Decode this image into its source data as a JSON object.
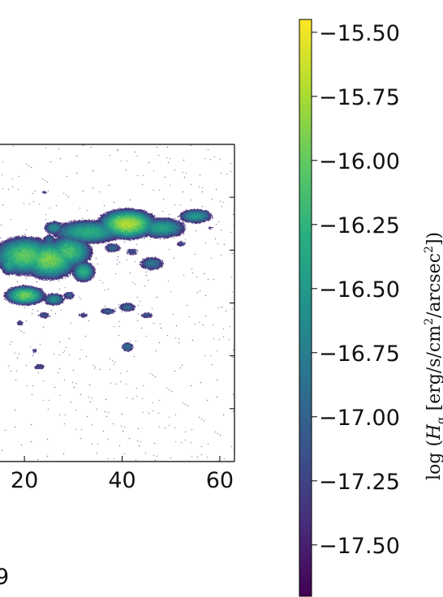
{
  "chart_data": {
    "type": "heatmap",
    "title": "",
    "x_axis": {
      "ticks": [
        20,
        40,
        60
      ],
      "tick_labels": [
        "20",
        "40",
        "60"
      ],
      "range": [
        15,
        63
      ]
    },
    "colorbar": {
      "colormap": "viridis",
      "range": [
        -17.7,
        -15.45
      ],
      "ticks": [
        -15.5,
        -15.75,
        -16.0,
        -16.25,
        -16.5,
        -16.75,
        -17.0,
        -17.25,
        -17.5
      ],
      "tick_labels": [
        "−15.50",
        "−15.75",
        "−16.00",
        "−16.25",
        "−16.50",
        "−16.75",
        "−17.00",
        "−17.25",
        "−17.50"
      ],
      "label": "log (H_α [erg/s/cm²/arcsec²])"
    },
    "background_color": "#ffffff",
    "partial_left_label": "9",
    "clumps": [
      {
        "x": 41,
        "y": 20,
        "sx": 3.5,
        "sy": 2.2,
        "peak": -15.7
      },
      {
        "x": 33,
        "y": 22,
        "sx": 5.0,
        "sy": 2.0,
        "peak": -16.3
      },
      {
        "x": 48,
        "y": 21,
        "sx": 3.5,
        "sy": 1.8,
        "peak": -16.4
      },
      {
        "x": 55,
        "y": 18,
        "sx": 2.5,
        "sy": 1.3,
        "peak": -16.5
      },
      {
        "x": 26,
        "y": 21,
        "sx": 1.5,
        "sy": 1.3,
        "peak": -16.6
      },
      {
        "x": 25,
        "y": 24,
        "sx": 1.1,
        "sy": 1.2,
        "peak": -16.9
      },
      {
        "x": 20,
        "y": 28,
        "sx": 4.0,
        "sy": 3.0,
        "peak": -16.0
      },
      {
        "x": 25,
        "y": 29,
        "sx": 3.5,
        "sy": 3.0,
        "peak": -15.9
      },
      {
        "x": 29,
        "y": 27,
        "sx": 3.0,
        "sy": 2.6,
        "peak": -16.1
      },
      {
        "x": 32,
        "y": 32,
        "sx": 1.6,
        "sy": 1.8,
        "peak": -16.3
      },
      {
        "x": 38,
        "y": 26,
        "sx": 1.5,
        "sy": 1.0,
        "peak": -16.9
      },
      {
        "x": 42,
        "y": 27,
        "sx": 1.2,
        "sy": 0.9,
        "peak": -17.1
      },
      {
        "x": 46,
        "y": 30,
        "sx": 2.0,
        "sy": 1.4,
        "peak": -16.8
      },
      {
        "x": 20,
        "y": 38,
        "sx": 2.5,
        "sy": 1.5,
        "peak": -15.95
      },
      {
        "x": 26,
        "y": 39,
        "sx": 1.6,
        "sy": 1.2,
        "peak": -16.6
      },
      {
        "x": 29,
        "y": 38,
        "sx": 1.1,
        "sy": 0.9,
        "peak": -17.0
      },
      {
        "x": 24,
        "y": 43,
        "sx": 1.2,
        "sy": 0.8,
        "peak": -17.1
      },
      {
        "x": 32,
        "y": 43,
        "sx": 1.0,
        "sy": 0.7,
        "peak": -17.2
      },
      {
        "x": 37,
        "y": 42,
        "sx": 1.5,
        "sy": 0.8,
        "peak": -17.0
      },
      {
        "x": 41,
        "y": 41,
        "sx": 1.5,
        "sy": 1.0,
        "peak": -16.9
      },
      {
        "x": 45,
        "y": 43,
        "sx": 1.3,
        "sy": 0.8,
        "peak": -17.1
      },
      {
        "x": 41,
        "y": 51,
        "sx": 1.0,
        "sy": 1.0,
        "peak": -16.8
      },
      {
        "x": 19,
        "y": 45,
        "sx": 0.8,
        "sy": 0.8,
        "peak": -17.2
      },
      {
        "x": 23,
        "y": 56,
        "sx": 1.3,
        "sy": 0.8,
        "peak": -17.2
      },
      {
        "x": 22,
        "y": 52,
        "sx": 0.6,
        "sy": 0.8,
        "peak": -17.3
      },
      {
        "x": 17,
        "y": 30,
        "sx": 1.5,
        "sy": 2.0,
        "peak": -16.4
      },
      {
        "x": 24,
        "y": 12,
        "sx": 0.6,
        "sy": 0.5,
        "peak": -17.3
      },
      {
        "x": 52,
        "y": 25,
        "sx": 1.0,
        "sy": 0.8,
        "peak": -17.2
      },
      {
        "x": 58,
        "y": 21,
        "sx": 0.7,
        "sy": 0.7,
        "peak": -17.4
      }
    ]
  }
}
